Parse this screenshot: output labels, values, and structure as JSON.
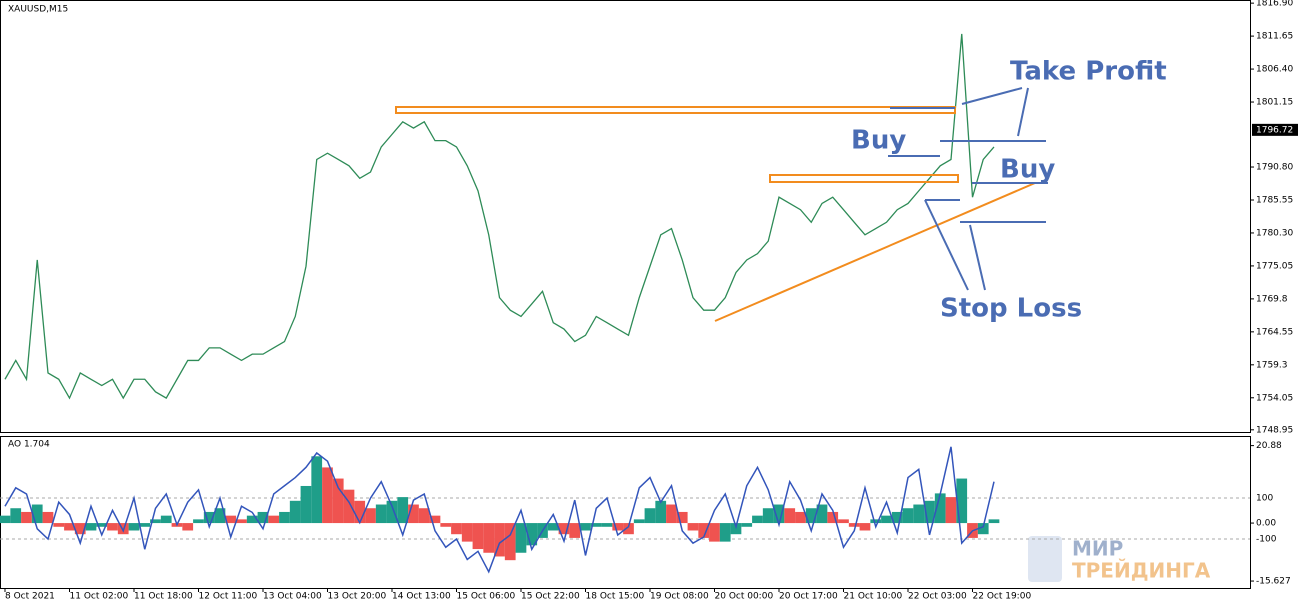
{
  "chart_data": [
    {
      "type": "line",
      "title": "XAUUSD,M15",
      "color": "#2e8b57",
      "categories": [
        "8 Oct 2021",
        null,
        null,
        null,
        null,
        null,
        "11 Oct 02:00",
        null,
        null,
        null,
        null,
        null,
        "11 Oct 18:00",
        null,
        null,
        null,
        null,
        null,
        "12 Oct 11:00",
        null,
        null,
        null,
        null,
        null,
        "13 Oct 04:00",
        null,
        null,
        null,
        null,
        null,
        "13 Oct 20:00",
        null,
        null,
        null,
        null,
        null,
        "14 Oct 13:00",
        null,
        null,
        null,
        null,
        null,
        "15 Oct 06:00",
        null,
        null,
        null,
        null,
        null,
        "15 Oct 22:00",
        null,
        null,
        null,
        null,
        null,
        "18 Oct 15:00",
        null,
        null,
        null,
        null,
        null,
        "19 Oct 08:00",
        null,
        null,
        null,
        null,
        null,
        "20 Oct 00:00",
        null,
        null,
        null,
        null,
        null,
        "20 Oct 17:00",
        null,
        null,
        null,
        null,
        null,
        "21 Oct 10:00",
        null,
        null,
        null,
        null,
        null,
        "22 Oct 03:00",
        null,
        null,
        null,
        null,
        null,
        "22 Oct 19:00",
        null,
        null
      ],
      "values": [
        1757,
        1760,
        1757,
        1776,
        1758,
        1757,
        1754,
        1758,
        1757,
        1756,
        1757,
        1754,
        1757,
        1757,
        1755,
        1754,
        1757,
        1760,
        1760,
        1762,
        1762,
        1761,
        1760,
        1761,
        1761,
        1762,
        1763,
        1767,
        1775,
        1792,
        1793,
        1792,
        1791,
        1789,
        1790,
        1794,
        1796,
        1798,
        1797,
        1798,
        1795,
        1795,
        1794,
        1791,
        1787,
        1780,
        1770,
        1768,
        1767,
        1769,
        1771,
        1766,
        1765,
        1763,
        1764,
        1767,
        1766,
        1765,
        1764,
        1770,
        1775,
        1780,
        1781,
        1776,
        1770,
        1768,
        1768,
        1770,
        1774,
        1776,
        1777,
        1779,
        1786,
        1785,
        1784,
        1782,
        1785,
        1786,
        1784,
        1782,
        1780,
        1781,
        1782,
        1784,
        1785,
        1787,
        1789,
        1791,
        1792,
        1812,
        1786,
        1792,
        1794
      ],
      "ylim": [
        1748.6,
        1817.4
      ],
      "yticks": [
        {
          "value": 1816.9,
          "label": "1816.90"
        },
        {
          "value": 1811.65,
          "label": "1811.65"
        },
        {
          "value": 1806.4,
          "label": "1806.40"
        },
        {
          "value": 1801.15,
          "label": "1801.15"
        },
        {
          "value": 1790.8,
          "label": "1790.80"
        },
        {
          "value": 1785.55,
          "label": "1785.55"
        },
        {
          "value": 1780.3,
          "label": "1780.30"
        },
        {
          "value": 1775.05,
          "label": "1775.05"
        },
        1769.8,
        {
          "value": 1764.55,
          "label": "1764.55"
        },
        1759.3,
        {
          "value": 1754.05,
          "label": "1754.05"
        },
        1748.95
      ],
      "last_price": 1796.72,
      "annotations": {
        "take_profit": "Take Profit",
        "buy_upper": "Buy",
        "buy_lower": "Buy",
        "stop_loss": "Stop Loss"
      }
    },
    {
      "type": "bar",
      "title": "AO 1.704",
      "up_color": "#1f9e89",
      "down_color": "#ef5350",
      "values": [
        2,
        4,
        3,
        5,
        3,
        -1,
        -2,
        -3,
        -2,
        -1,
        -2,
        -3,
        -2,
        -1,
        1,
        2,
        -1,
        -2,
        1,
        3,
        4,
        2,
        1,
        2,
        3,
        2,
        3,
        6,
        10,
        18,
        15,
        12,
        9,
        6,
        4,
        5,
        6,
        7,
        5,
        4,
        2,
        -1,
        -3,
        -5,
        -7,
        -8,
        -9,
        -10,
        -8,
        -6,
        -4,
        -2,
        -3,
        -4,
        -2,
        -1,
        -1,
        -2,
        -3,
        1,
        4,
        6,
        5,
        3,
        -2,
        -4,
        -5,
        -5,
        -3,
        -1,
        2,
        4,
        5,
        4,
        3,
        4,
        5,
        3,
        1,
        -1,
        -2,
        1,
        2,
        3,
        4,
        5,
        6,
        8,
        7,
        12,
        -4,
        -3,
        1
      ],
      "ylim": [
        -17.5,
        23.2
      ],
      "yticks": [
        20.88,
        {
          "value": 0,
          "label": "0.00"
        },
        -15.627
      ],
      "y2lim": [
        -339,
        398
      ],
      "y2ticks": [
        100,
        -100
      ],
      "line": {
        "color": "#3355bb",
        "axis": "y2",
        "values": [
          60,
          150,
          120,
          -50,
          -100,
          80,
          20,
          -120,
          60,
          -80,
          40,
          -60,
          100,
          -150,
          50,
          120,
          -30,
          80,
          140,
          -40,
          100,
          -90,
          60,
          30,
          -50,
          120,
          160,
          200,
          250,
          320,
          280,
          150,
          80,
          -20,
          100,
          180,
          60,
          -80,
          90,
          120,
          -60,
          -140,
          -100,
          -200,
          -160,
          -260,
          -120,
          -80,
          40,
          -150,
          -60,
          20,
          -110,
          90,
          -180,
          50,
          100,
          -80,
          -40,
          150,
          200,
          80,
          160,
          -60,
          -120,
          -90,
          40,
          120,
          -40,
          160,
          250,
          140,
          -30,
          180,
          90,
          -60,
          120,
          40,
          -140,
          -60,
          150,
          -40,
          80,
          -70,
          200,
          240,
          -80,
          120,
          350,
          -120,
          -60,
          -40,
          180
        ]
      }
    }
  ],
  "watermark": [
    "МИР",
    "ТРЕЙДИНГА"
  ]
}
